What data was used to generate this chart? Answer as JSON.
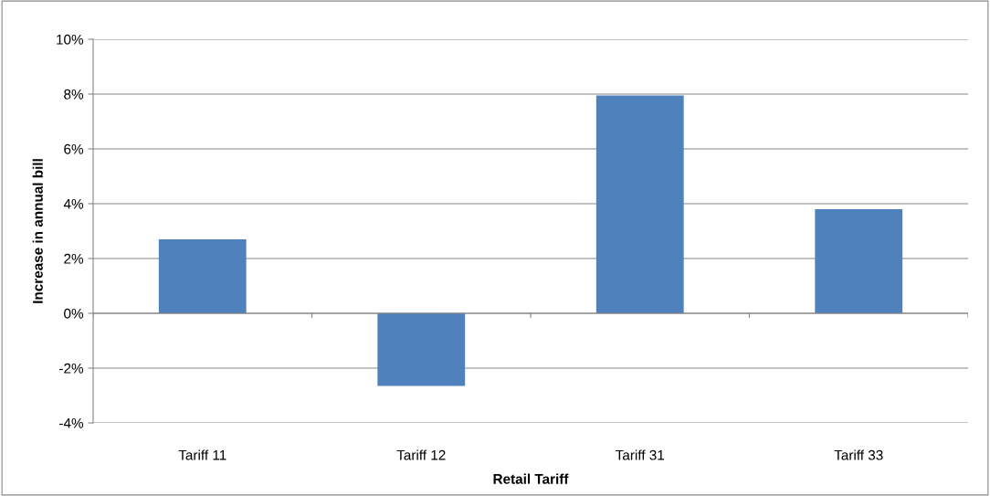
{
  "chart_data": {
    "type": "bar",
    "xlabel": "Retail Tariff",
    "ylabel": "Increase in annual bill",
    "categories": [
      "Tariff 11",
      "Tariff 12",
      "Tariff 31",
      "Tariff 33"
    ],
    "values": [
      2.7,
      -2.65,
      7.95,
      3.8
    ],
    "color": "#4f81bd",
    "ylim": [
      -4,
      10
    ],
    "yticks": [
      {
        "value": -4,
        "label": "-4%"
      },
      {
        "value": -2,
        "label": "-2%"
      },
      {
        "value": 0,
        "label": "0%"
      },
      {
        "value": 2,
        "label": "2%"
      },
      {
        "value": 4,
        "label": "4%"
      },
      {
        "value": 6,
        "label": "6%"
      },
      {
        "value": 8,
        "label": "8%"
      },
      {
        "value": 10,
        "label": "10%"
      }
    ],
    "grid": "y"
  }
}
